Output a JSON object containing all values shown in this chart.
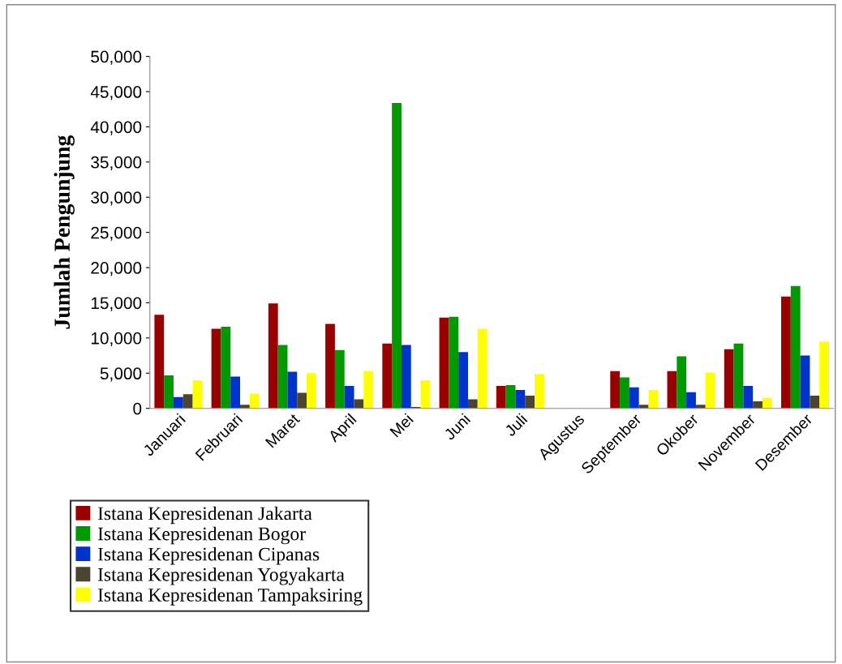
{
  "chart_data": {
    "type": "bar",
    "ylabel": "Jumlah Pengunjung",
    "categories": [
      "Januari",
      "Februari",
      "Maret",
      "April",
      "Mei",
      "Juni",
      "Juli",
      "Agustus",
      "September",
      "Okober",
      "November",
      "Desember"
    ],
    "series": [
      {
        "name": "Istana Kepresidenan Jakarta",
        "color": "#990000",
        "values": [
          13300,
          11300,
          14900,
          12000,
          9200,
          12900,
          3200,
          null,
          5300,
          5300,
          8400,
          15900
        ]
      },
      {
        "name": "Istana Kepresidenan Bogor",
        "color": "#009900",
        "values": [
          4700,
          11600,
          9000,
          8300,
          43400,
          13000,
          3300,
          null,
          4400,
          7400,
          9200,
          17400
        ]
      },
      {
        "name": "Istana Kepresidenan Cipanas",
        "color": "#0033cc",
        "values": [
          1600,
          4500,
          5200,
          3200,
          9000,
          8000,
          2600,
          null,
          3000,
          2300,
          3200,
          7500
        ]
      },
      {
        "name": "Istana Kepresidenan Yogyakarta",
        "color": "#4a4430",
        "values": [
          2000,
          500,
          2200,
          1300,
          200,
          1300,
          1800,
          null,
          500,
          500,
          1000,
          1800
        ]
      },
      {
        "name": "Istana Kepresidenan Tampaksiring",
        "color": "#ffff00",
        "values": [
          4000,
          2100,
          5000,
          5300,
          4000,
          11300,
          4900,
          null,
          2600,
          5100,
          1500,
          9500
        ]
      }
    ],
    "ylim": [
      0,
      50000
    ],
    "yticks": [
      0,
      {
        "value": 5000,
        "label": "5,000"
      },
      {
        "value": 10000,
        "label": "10,000"
      },
      {
        "value": 15000,
        "label": "15,000"
      },
      {
        "value": 20000,
        "label": "20,000"
      },
      {
        "value": 25000,
        "label": "25,000"
      },
      {
        "value": 30000,
        "label": "30,000"
      },
      {
        "value": 35000,
        "label": "35,000"
      },
      {
        "value": 40000,
        "label": "40,000"
      },
      {
        "value": 45000,
        "label": "45,000"
      },
      {
        "value": 50000,
        "label": "50,000"
      }
    ],
    "grid": false,
    "legend": "bottom left"
  }
}
